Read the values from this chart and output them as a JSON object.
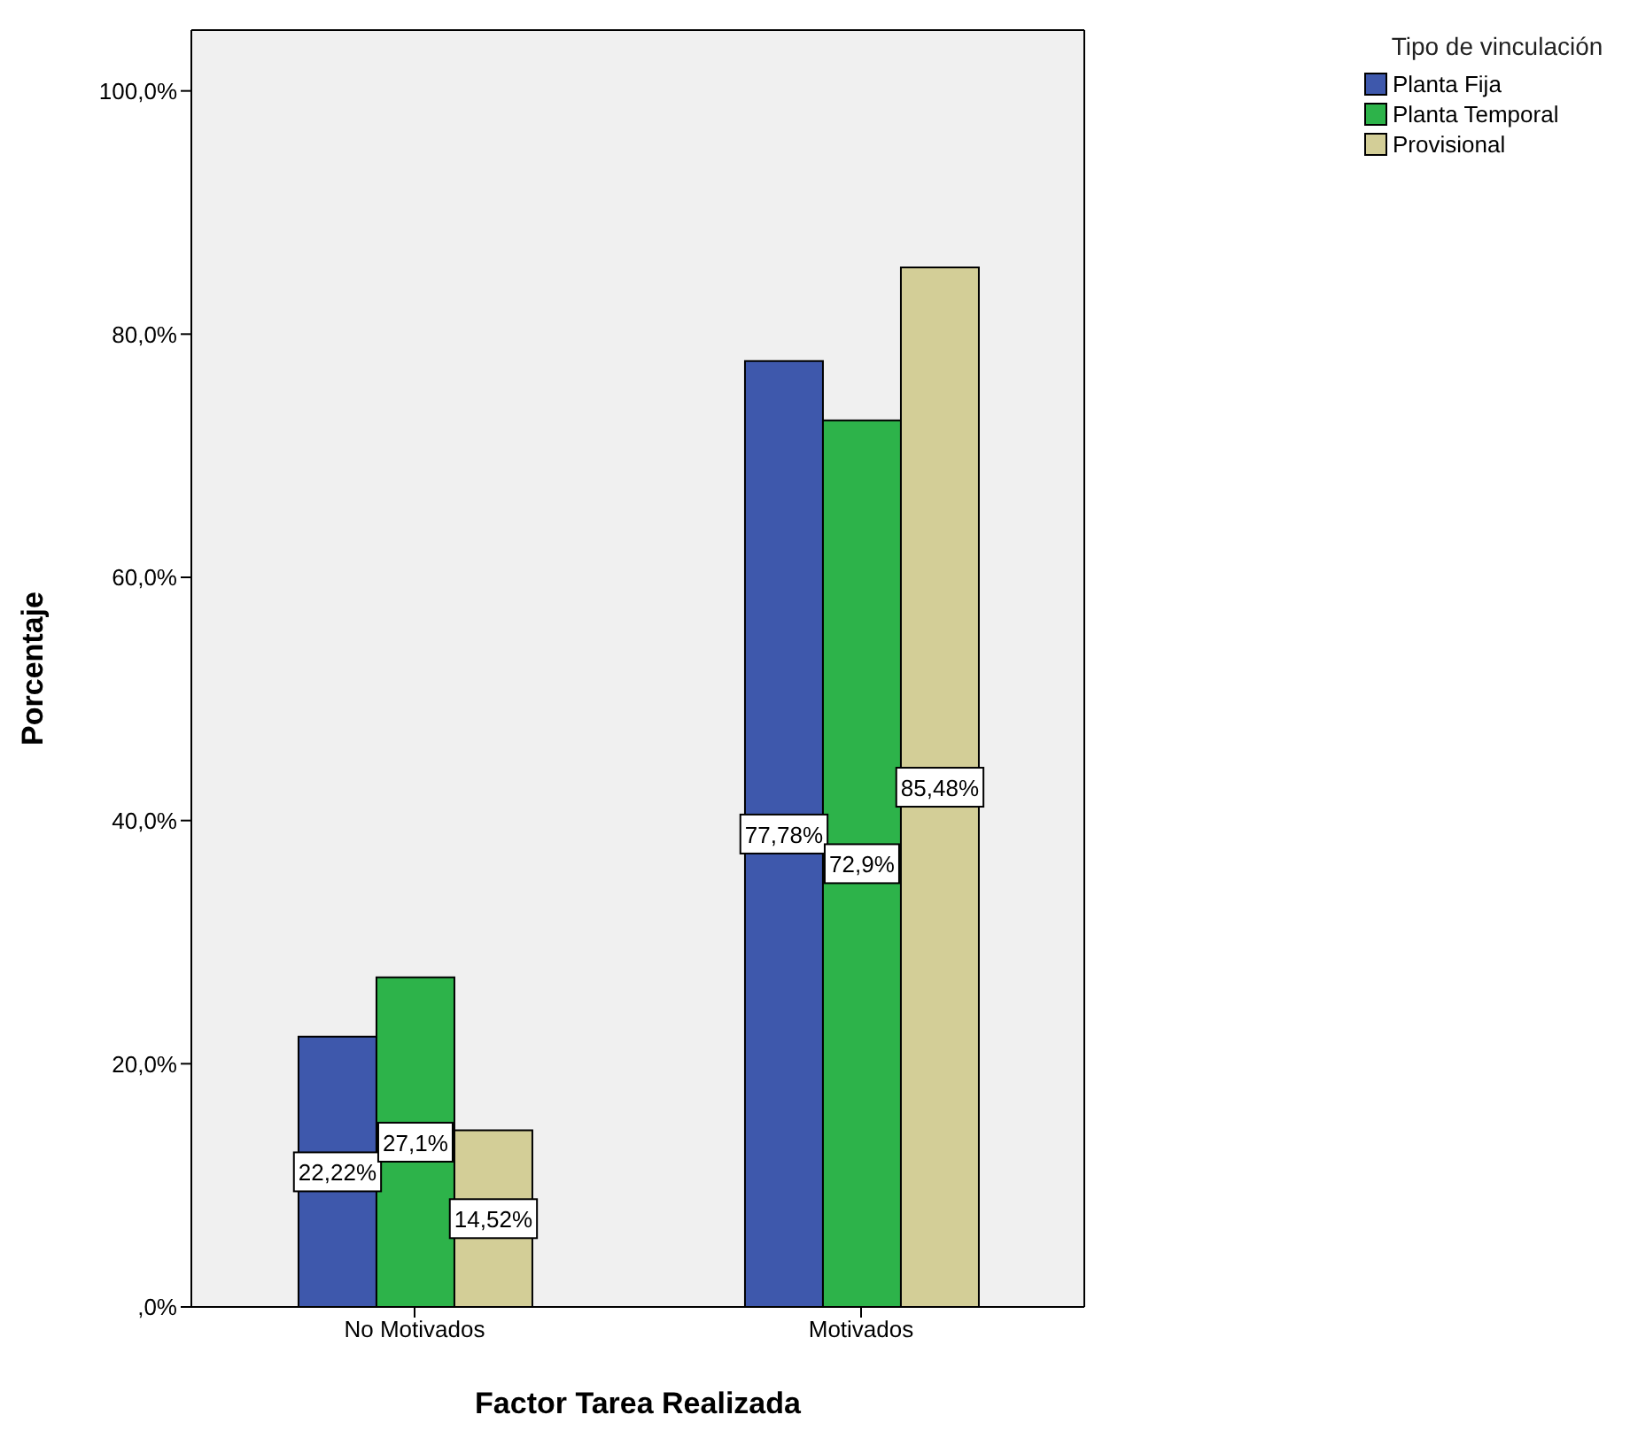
{
  "chart_data": {
    "type": "bar",
    "xlabel": "Factor Tarea Realizada",
    "ylabel": "Porcentaje",
    "legend_title": "Tipo de vinculación",
    "categories": [
      "No Motivados",
      "Motivados"
    ],
    "series": [
      {
        "name": "Planta Fija",
        "color": "#3e58ac",
        "values": [
          22.22,
          77.78
        ],
        "value_labels": [
          "22,22%",
          "77,78%"
        ]
      },
      {
        "name": "Planta Temporal",
        "color": "#2db34a",
        "values": [
          27.1,
          72.9
        ],
        "value_labels": [
          "27,1%",
          "72,9%"
        ]
      },
      {
        "name": "Provisional",
        "color": "#d3ce97",
        "values": [
          14.52,
          85.48
        ],
        "value_labels": [
          "14,52%",
          "85,48%"
        ]
      }
    ],
    "ylim": [
      0,
      105
    ],
    "yticks": [
      {
        "value": 0,
        "label": ",0%"
      },
      {
        "value": 20,
        "label": "20,0%"
      },
      {
        "value": 40,
        "label": "40,0%"
      },
      {
        "value": 60,
        "label": "60,0%"
      },
      {
        "value": 80,
        "label": "80,0%"
      },
      {
        "value": 100,
        "label": "100,0%"
      }
    ],
    "grid": false,
    "legend": "top right"
  }
}
